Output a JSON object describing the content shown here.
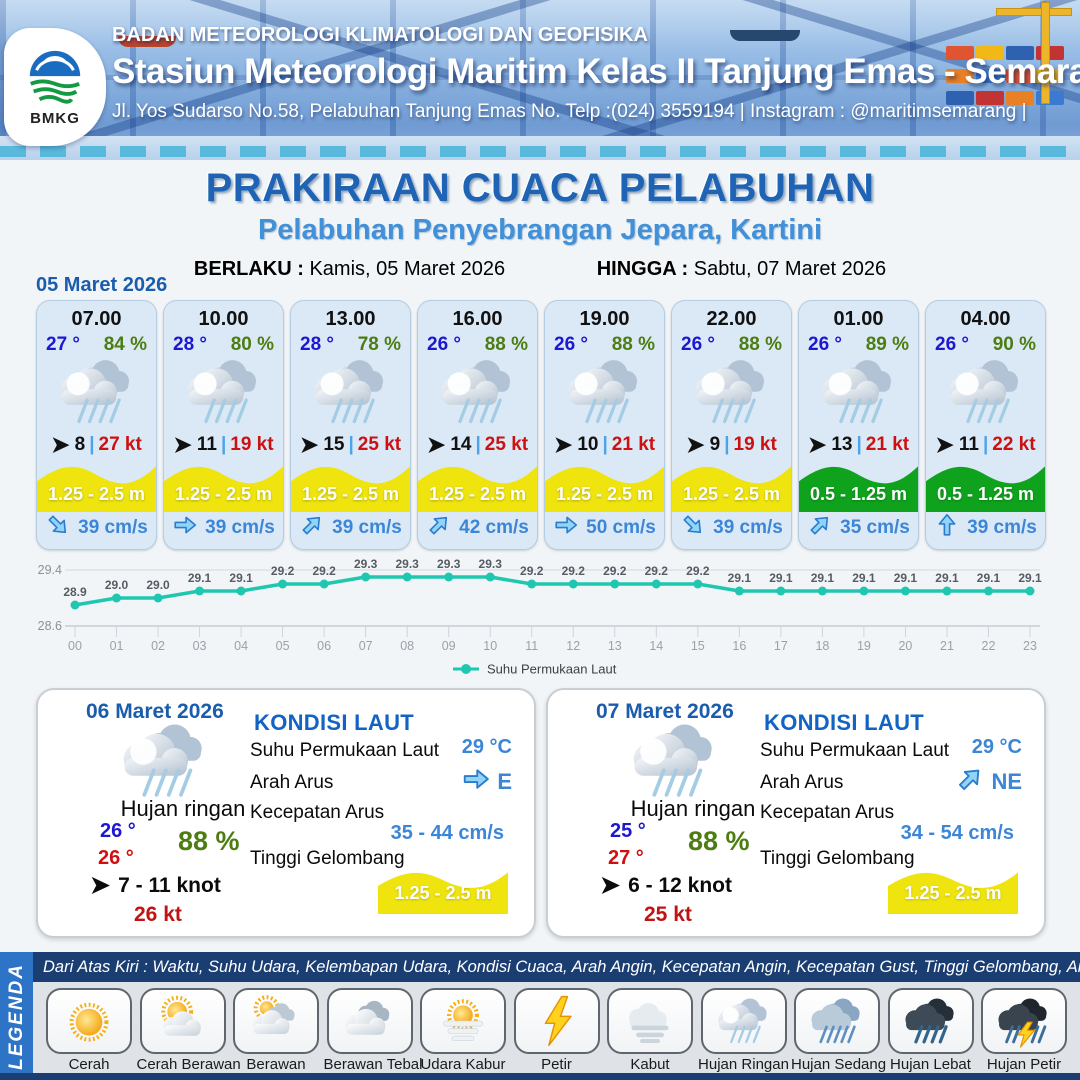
{
  "header": {
    "agency": "BADAN METEOROLOGI KLIMATOLOGI DAN GEOFISIKA",
    "station": "Stasiun Meteorologi Maritim Kelas II Tanjung Emas - Semarang",
    "address": "Jl. Yos Sudarso No.58, Pelabuhan Tanjung Emas No. Telp :(024) 3559194 | Instagram : @maritimsemarang |",
    "logo_text": "BMKG"
  },
  "title": {
    "main": "PRAKIRAAN CUACA PELABUHAN",
    "subtitle": "Pelabuhan Penyebrangan Jepara, Kartini",
    "valid_label": "BERLAKU :",
    "valid_value": "Kamis, 05 Maret 2026",
    "until_label": "HINGGA :",
    "until_value": "Sabtu, 07 Maret 2026"
  },
  "colors": {
    "wave_yellow": "#efe40e",
    "wave_green": "#0fa31d",
    "accent_blue": "#1e63b4",
    "value_blue": "#3c86d8",
    "temp_blue": "#1d17d1",
    "humidity_green": "#4d7d12",
    "gust_red": "#cc1111",
    "chart_teal": "#1fc7b1"
  },
  "day1": {
    "date": "05 Maret 2026",
    "wind_sep": "|",
    "cards": [
      {
        "time": "07.00",
        "temp": "27 °",
        "humidity": "84 %",
        "weather_icon": "rain-light",
        "wind_speed": "8",
        "wind_gust": "27 kt",
        "wave_height": "1.25 - 2.5 m",
        "wave_color": "#efe40e",
        "current_icon": "arrow-se",
        "current_rot": 45,
        "current_speed": "39 cm/s"
      },
      {
        "time": "10.00",
        "temp": "28 °",
        "humidity": "80 %",
        "weather_icon": "rain-light",
        "wind_speed": "11",
        "wind_gust": "19 kt",
        "wave_height": "1.25 - 2.5 m",
        "wave_color": "#efe40e",
        "current_icon": "arrow-e",
        "current_rot": 0,
        "current_speed": "39 cm/s"
      },
      {
        "time": "13.00",
        "temp": "28 °",
        "humidity": "78 %",
        "weather_icon": "rain-light",
        "wind_speed": "15",
        "wind_gust": "25 kt",
        "wave_height": "1.25 - 2.5 m",
        "wave_color": "#efe40e",
        "current_icon": "arrow-ne",
        "current_rot": -45,
        "current_speed": "39 cm/s"
      },
      {
        "time": "16.00",
        "temp": "26 °",
        "humidity": "88 %",
        "weather_icon": "rain-light",
        "wind_speed": "14",
        "wind_gust": "25 kt",
        "wave_height": "1.25 - 2.5 m",
        "wave_color": "#efe40e",
        "current_icon": "arrow-ne",
        "current_rot": -45,
        "current_speed": "42 cm/s"
      },
      {
        "time": "19.00",
        "temp": "26 °",
        "humidity": "88 %",
        "weather_icon": "rain-light",
        "wind_speed": "10",
        "wind_gust": "21 kt",
        "wave_height": "1.25 - 2.5 m",
        "wave_color": "#efe40e",
        "current_icon": "arrow-e",
        "current_rot": 0,
        "current_speed": "50 cm/s"
      },
      {
        "time": "22.00",
        "temp": "26 °",
        "humidity": "88 %",
        "weather_icon": "rain-light",
        "wind_speed": "9",
        "wind_gust": "19 kt",
        "wave_height": "1.25 - 2.5 m",
        "wave_color": "#efe40e",
        "current_icon": "arrow-se",
        "current_rot": 45,
        "current_speed": "39 cm/s"
      },
      {
        "time": "01.00",
        "temp": "26 °",
        "humidity": "89 %",
        "weather_icon": "rain-light",
        "wind_speed": "13",
        "wind_gust": "21 kt",
        "wave_height": "0.5 - 1.25 m",
        "wave_color": "#0fa31d",
        "current_icon": "arrow-ne",
        "current_rot": -45,
        "current_speed": "35 cm/s"
      },
      {
        "time": "04.00",
        "temp": "26 °",
        "humidity": "90 %",
        "weather_icon": "rain-light",
        "wind_speed": "11",
        "wind_gust": "22 kt",
        "wave_height": "0.5 - 1.25 m",
        "wave_color": "#0fa31d",
        "current_icon": "arrow-n",
        "current_rot": -90,
        "current_speed": "39 cm/s"
      }
    ]
  },
  "chart_data": {
    "type": "line",
    "x": [
      "00",
      "01",
      "02",
      "03",
      "04",
      "05",
      "06",
      "07",
      "08",
      "09",
      "10",
      "11",
      "12",
      "13",
      "14",
      "15",
      "16",
      "17",
      "18",
      "19",
      "20",
      "21",
      "22",
      "23"
    ],
    "series": [
      {
        "name": "Suhu Permukaan Laut",
        "values": [
          28.9,
          29.0,
          29.0,
          29.1,
          29.1,
          29.2,
          29.2,
          29.3,
          29.3,
          29.3,
          29.3,
          29.2,
          29.2,
          29.2,
          29.2,
          29.2,
          29.1,
          29.1,
          29.1,
          29.1,
          29.1,
          29.1,
          29.1,
          29.1
        ]
      }
    ],
    "ylim": [
      28.6,
      29.4
    ],
    "yticks": [
      28.6,
      29.4
    ],
    "grid": true,
    "legend_position": "bottom",
    "line_color": "#1fc7b1"
  },
  "day_cards": [
    {
      "date": "06 Maret 2026",
      "condition": "Hujan ringan",
      "weather_icon": "rain-light",
      "temp_top": "26 °",
      "temp_bottom": "26 °",
      "humidity": "88 %",
      "wind_range": "7  - 11 knot",
      "gust": "26 kt",
      "sea": {
        "title": "KONDISI LAUT",
        "sst_label": "Suhu Permukaan Laut",
        "sst_value": "29 °C",
        "dir_label": "Arah Arus",
        "dir_value": "E",
        "dir_icon": "arrow-e",
        "dir_rot": 0,
        "speed_label": "Kecepatan Arus",
        "speed_value": "35 - 44 cm/s",
        "wave_label": "Tinggi Gelombang",
        "wave_value": "1.25 - 2.5 m",
        "wave_color": "#efe40e"
      }
    },
    {
      "date": "07 Maret 2026",
      "condition": "Hujan ringan",
      "weather_icon": "rain-light",
      "temp_top": "25 °",
      "temp_bottom": "27 °",
      "humidity": "88 %",
      "wind_range": "6  - 12 knot",
      "gust": "25 kt",
      "sea": {
        "title": "KONDISI LAUT",
        "sst_label": "Suhu Permukaan Laut",
        "sst_value": "29 °C",
        "dir_label": "Arah Arus",
        "dir_value": "NE",
        "dir_icon": "arrow-ne",
        "dir_rot": -45,
        "speed_label": "Kecepatan Arus",
        "speed_value": "34 - 54 cm/s",
        "wave_label": "Tinggi Gelombang",
        "wave_value": "1.25 - 2.5 m",
        "wave_color": "#efe40e"
      }
    }
  ],
  "legend": {
    "title": "LEGENDA",
    "note": "Dari Atas Kiri : Waktu, Suhu Udara, Kelembapan Udara, Kondisi Cuaca, Arah Angin, Kecepatan Angin, Kecepatan Gust, Tinggi Gelombang, Arah Arus, Kecepatan Arus",
    "items": [
      {
        "label": "Cerah",
        "icon": "sun"
      },
      {
        "label": "Cerah Berawan",
        "icon": "sun-cloud"
      },
      {
        "label": "Berawan",
        "icon": "cloudy"
      },
      {
        "label": "Berawan Tebal",
        "icon": "thick-cloud"
      },
      {
        "label": "Udara Kabur",
        "icon": "haze"
      },
      {
        "label": "Petir",
        "icon": "lightning"
      },
      {
        "label": "Kabut",
        "icon": "fog"
      },
      {
        "label": "Hujan Ringan",
        "icon": "rain-light"
      },
      {
        "label": "Hujan Sedang",
        "icon": "rain-medium"
      },
      {
        "label": "Hujan Lebat",
        "icon": "rain-heavy"
      },
      {
        "label": "Hujan Petir",
        "icon": "rain-thunder"
      }
    ]
  }
}
